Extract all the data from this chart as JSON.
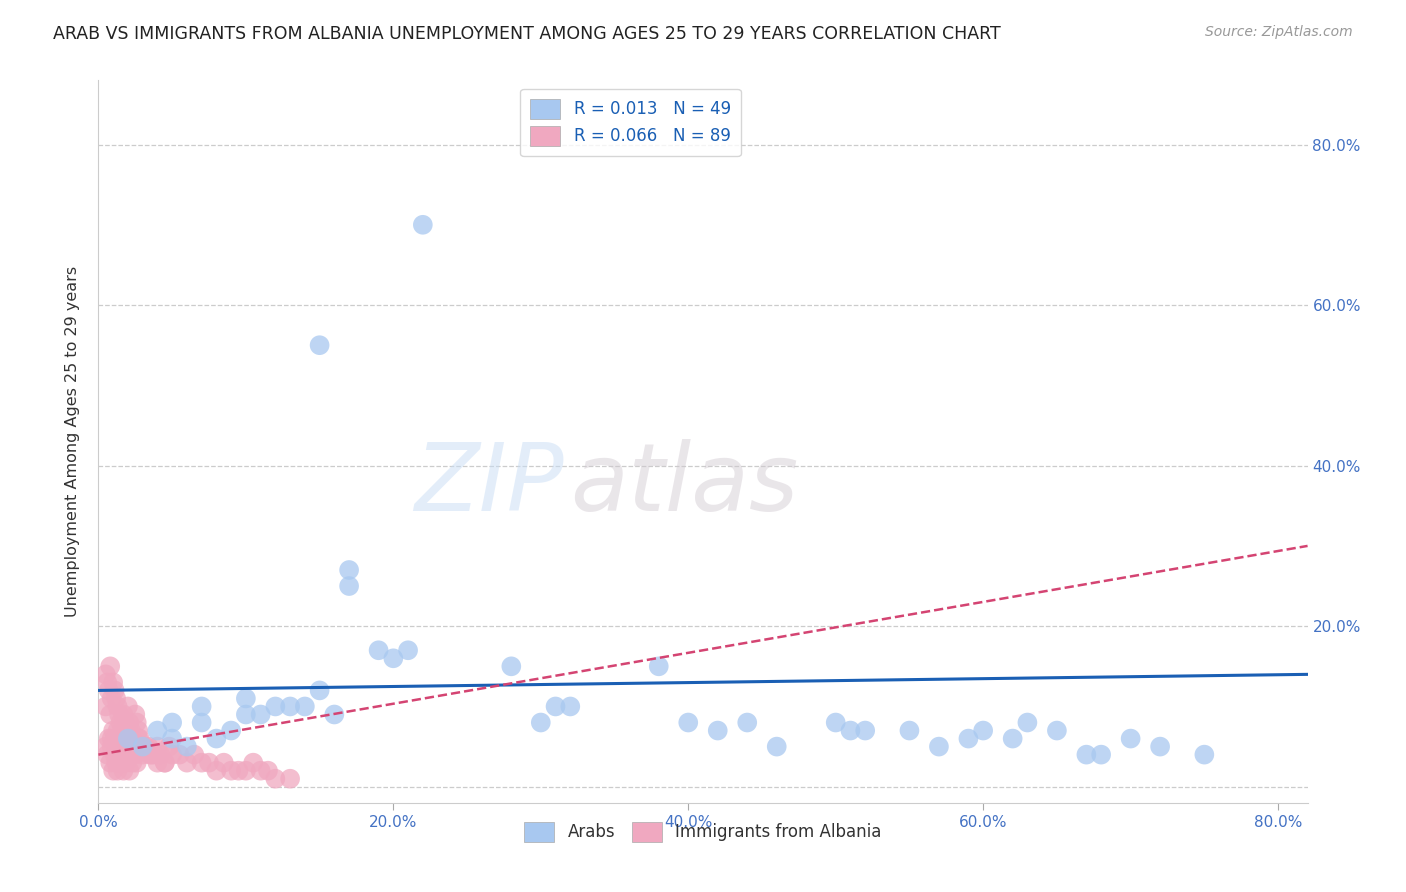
{
  "title": "ARAB VS IMMIGRANTS FROM ALBANIA UNEMPLOYMENT AMONG AGES 25 TO 29 YEARS CORRELATION CHART",
  "source": "Source: ZipAtlas.com",
  "ylabel": "Unemployment Among Ages 25 to 29 years",
  "xlim": [
    0.0,
    0.82
  ],
  "ylim": [
    -0.02,
    0.88
  ],
  "yticks": [
    0.0,
    0.2,
    0.4,
    0.6,
    0.8
  ],
  "xticks": [
    0.0,
    0.2,
    0.4,
    0.6,
    0.8
  ],
  "xtick_labels": [
    "0.0%",
    "20.0%",
    "40.0%",
    "60.0%",
    "80.0%"
  ],
  "ytick_labels_right": [
    "",
    "20.0%",
    "40.0%",
    "60.0%",
    "80.0%"
  ],
  "background_color": "#ffffff",
  "grid_color": "#cccccc",
  "arab_color": "#a8c8f0",
  "albania_color": "#f0a8c0",
  "arab_line_color": "#1a5fb4",
  "albania_line_color": "#d44472",
  "arab_R": 0.013,
  "arab_N": 49,
  "albania_R": 0.066,
  "albania_N": 89,
  "legend_label_arab": "Arabs",
  "legend_label_albania": "Immigrants from Albania",
  "watermark_zip": "ZIP",
  "watermark_atlas": "atlas",
  "arab_x": [
    0.02,
    0.03,
    0.04,
    0.05,
    0.05,
    0.06,
    0.07,
    0.07,
    0.08,
    0.09,
    0.1,
    0.1,
    0.11,
    0.12,
    0.13,
    0.14,
    0.15,
    0.15,
    0.16,
    0.17,
    0.17,
    0.19,
    0.2,
    0.21,
    0.22,
    0.28,
    0.3,
    0.31,
    0.32,
    0.38,
    0.4,
    0.42,
    0.44,
    0.46,
    0.5,
    0.51,
    0.52,
    0.55,
    0.57,
    0.59,
    0.6,
    0.62,
    0.63,
    0.65,
    0.67,
    0.68,
    0.7,
    0.72,
    0.75
  ],
  "arab_y": [
    0.06,
    0.05,
    0.07,
    0.06,
    0.08,
    0.05,
    0.08,
    0.1,
    0.06,
    0.07,
    0.09,
    0.11,
    0.09,
    0.1,
    0.1,
    0.1,
    0.55,
    0.12,
    0.09,
    0.27,
    0.25,
    0.17,
    0.16,
    0.17,
    0.7,
    0.15,
    0.08,
    0.1,
    0.1,
    0.15,
    0.08,
    0.07,
    0.08,
    0.05,
    0.08,
    0.07,
    0.07,
    0.07,
    0.05,
    0.06,
    0.07,
    0.06,
    0.08,
    0.07,
    0.04,
    0.04,
    0.06,
    0.05,
    0.04
  ],
  "albania_x": [
    0.005,
    0.005,
    0.006,
    0.007,
    0.008,
    0.008,
    0.009,
    0.009,
    0.01,
    0.01,
    0.011,
    0.011,
    0.012,
    0.012,
    0.013,
    0.013,
    0.014,
    0.014,
    0.015,
    0.015,
    0.016,
    0.016,
    0.017,
    0.017,
    0.018,
    0.018,
    0.019,
    0.02,
    0.02,
    0.021,
    0.022,
    0.023,
    0.024,
    0.025,
    0.026,
    0.027,
    0.028,
    0.03,
    0.032,
    0.034,
    0.036,
    0.038,
    0.04,
    0.042,
    0.045,
    0.048,
    0.05,
    0.055,
    0.06,
    0.065,
    0.07,
    0.075,
    0.08,
    0.085,
    0.09,
    0.095,
    0.1,
    0.105,
    0.11,
    0.115,
    0.12,
    0.13,
    0.005,
    0.006,
    0.007,
    0.008,
    0.009,
    0.01,
    0.011,
    0.012,
    0.013,
    0.014,
    0.015,
    0.016,
    0.017,
    0.018,
    0.019,
    0.02,
    0.021,
    0.022,
    0.023,
    0.024,
    0.025,
    0.026,
    0.027,
    0.03,
    0.035,
    0.04,
    0.045
  ],
  "albania_y": [
    0.14,
    0.1,
    0.13,
    0.12,
    0.15,
    0.09,
    0.11,
    0.06,
    0.13,
    0.07,
    0.12,
    0.06,
    0.11,
    0.05,
    0.1,
    0.07,
    0.09,
    0.04,
    0.08,
    0.05,
    0.07,
    0.04,
    0.09,
    0.03,
    0.08,
    0.04,
    0.07,
    0.1,
    0.06,
    0.08,
    0.07,
    0.06,
    0.05,
    0.09,
    0.08,
    0.07,
    0.06,
    0.04,
    0.05,
    0.05,
    0.04,
    0.04,
    0.05,
    0.04,
    0.03,
    0.05,
    0.04,
    0.04,
    0.03,
    0.04,
    0.03,
    0.03,
    0.02,
    0.03,
    0.02,
    0.02,
    0.02,
    0.03,
    0.02,
    0.02,
    0.01,
    0.01,
    0.05,
    0.04,
    0.06,
    0.03,
    0.05,
    0.02,
    0.04,
    0.03,
    0.02,
    0.04,
    0.03,
    0.05,
    0.02,
    0.04,
    0.03,
    0.05,
    0.02,
    0.04,
    0.03,
    0.05,
    0.04,
    0.03,
    0.06,
    0.05,
    0.04,
    0.03,
    0.03
  ],
  "arab_trend_x": [
    0.0,
    0.82
  ],
  "arab_trend_y": [
    0.12,
    0.14
  ],
  "albania_trend_x": [
    0.0,
    0.82
  ],
  "albania_trend_y": [
    0.04,
    0.3
  ]
}
